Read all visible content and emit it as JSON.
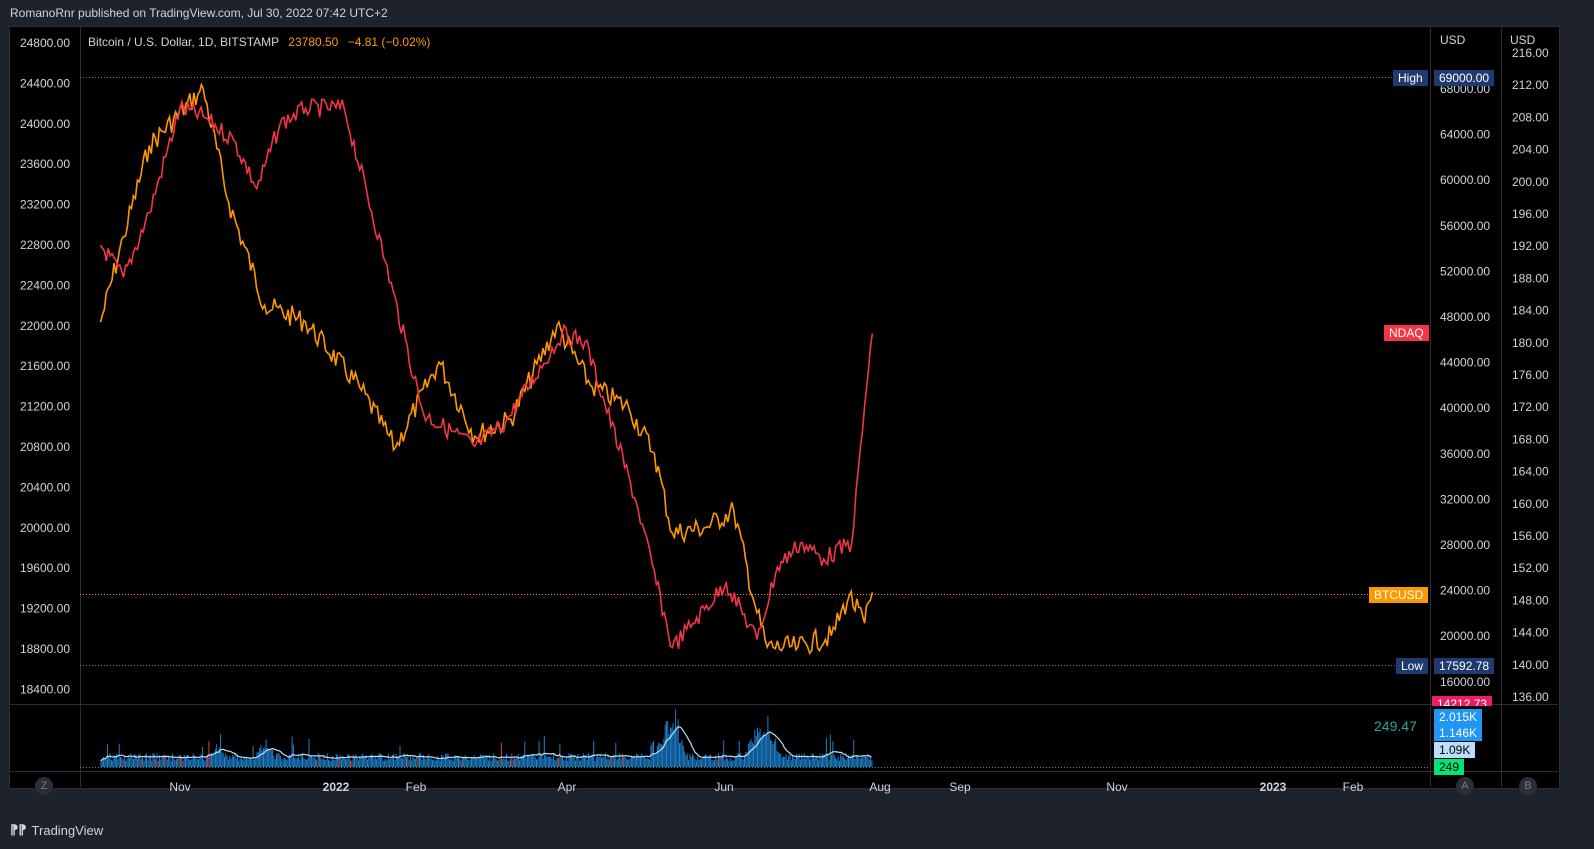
{
  "header": {
    "published": "RomanoRnr published on TradingView.com, Jul 30, 2022 07:42 UTC+2"
  },
  "footer": {
    "brand": "TradingView",
    "logo_icon": "tradingview-logo-icon"
  },
  "legend": {
    "symbol": "Bitcoin / U.S. Dollar, 1D, BITSTAMP",
    "price": "23780.50",
    "change": "−4.81 (−0.02%)"
  },
  "axes": {
    "left_ticks": [
      "24800.00",
      "24400.00",
      "24000.00",
      "23600.00",
      "23200.00",
      "22800.00",
      "22400.00",
      "22000.00",
      "21600.00",
      "21200.00",
      "20800.00",
      "20400.00",
      "20000.00",
      "19600.00",
      "19200.00",
      "18800.00",
      "18400.00"
    ],
    "right1_unit": "USD",
    "right1_ticks": [
      "68000.00",
      "64000.00",
      "60000.00",
      "56000.00",
      "52000.00",
      "48000.00",
      "44000.00",
      "40000.00",
      "36000.00",
      "32000.00",
      "28000.00",
      "24000.00",
      "20000.00",
      "16000.00"
    ],
    "right2_unit": "USD",
    "right2_ticks": [
      "216.00",
      "212.00",
      "208.00",
      "204.00",
      "200.00",
      "196.00",
      "192.00",
      "188.00",
      "184.00",
      "180.00",
      "176.00",
      "172.00",
      "168.00",
      "164.00",
      "160.00",
      "156.00",
      "152.00",
      "148.00",
      "144.00",
      "140.00",
      "136.00"
    ],
    "time_labels": [
      "Nov",
      "2022",
      "Feb",
      "Apr",
      "Jun",
      "Aug",
      "Sep",
      "Nov",
      "2023",
      "Feb"
    ]
  },
  "tags": {
    "high_label": "High",
    "high_value": "69000.00",
    "low_label": "Low",
    "low_value": "17592.78",
    "ndaq": "NDAQ",
    "btcusd": "BTCUSD",
    "pink_value": "14212.73",
    "vol1": "2.015K",
    "vol2": "1.146K",
    "vol3": "1.09K",
    "vol4": "249",
    "vol_value": "249.47"
  },
  "scale_buttons": {
    "z": "Z",
    "a": "A",
    "b": "B"
  },
  "colors": {
    "btc": "#ff9800",
    "ndaq": "#f23645",
    "vol": "#2196f3",
    "vol_ma": "#bbdefb"
  },
  "chart_data": {
    "type": "line",
    "x_range": [
      "2021-10-01",
      "2023-03-01"
    ],
    "series": [
      {
        "name": "BTCUSD",
        "axis": "USD",
        "points": [
          [
            "2021-10-01",
            47500
          ],
          [
            "2021-10-10",
            55000
          ],
          [
            "2021-10-20",
            63000
          ],
          [
            "2021-11-08",
            67500
          ],
          [
            "2021-11-10",
            68000
          ],
          [
            "2021-11-20",
            58000
          ],
          [
            "2021-12-04",
            49000
          ],
          [
            "2021-12-20",
            47500
          ],
          [
            "2022-01-10",
            41800
          ],
          [
            "2022-01-24",
            36500
          ],
          [
            "2022-02-10",
            44000
          ],
          [
            "2022-02-24",
            37500
          ],
          [
            "2022-03-10",
            39000
          ],
          [
            "2022-03-28",
            47200
          ],
          [
            "2022-04-10",
            42000
          ],
          [
            "2022-04-25",
            40000
          ],
          [
            "2022-05-05",
            36000
          ],
          [
            "2022-05-12",
            29000
          ],
          [
            "2022-05-25",
            29500
          ],
          [
            "2022-06-05",
            31000
          ],
          [
            "2022-06-14",
            22000
          ],
          [
            "2022-06-18",
            19000
          ],
          [
            "2022-06-30",
            19000
          ],
          [
            "2022-07-13",
            20000
          ],
          [
            "2022-07-20",
            23500
          ],
          [
            "2022-07-26",
            21100
          ],
          [
            "2022-07-29",
            23800
          ]
        ]
      },
      {
        "name": "NDAQ",
        "axis": "USD",
        "points": [
          [
            "2021-10-01",
            192
          ],
          [
            "2021-10-10",
            188
          ],
          [
            "2021-10-20",
            196
          ],
          [
            "2021-11-01",
            209
          ],
          [
            "2021-11-10",
            208
          ],
          [
            "2021-11-22",
            205
          ],
          [
            "2021-12-01",
            199
          ],
          [
            "2021-12-10",
            207
          ],
          [
            "2021-12-20",
            209
          ],
          [
            "2022-01-04",
            209
          ],
          [
            "2022-01-20",
            190
          ],
          [
            "2022-02-04",
            171
          ],
          [
            "2022-02-24",
            167
          ],
          [
            "2022-03-08",
            170
          ],
          [
            "2022-03-30",
            181
          ],
          [
            "2022-04-08",
            180
          ],
          [
            "2022-04-28",
            160
          ],
          [
            "2022-05-12",
            142
          ],
          [
            "2022-05-20",
            145
          ],
          [
            "2022-06-02",
            150
          ],
          [
            "2022-06-14",
            143
          ],
          [
            "2022-06-22",
            152
          ],
          [
            "2022-07-01",
            155
          ],
          [
            "2022-07-10",
            153
          ],
          [
            "2022-07-21",
            155
          ],
          [
            "2022-07-26",
            172
          ],
          [
            "2022-07-29",
            181
          ]
        ]
      }
    ],
    "volume": {
      "name": "Volume",
      "last": "249"
    }
  }
}
